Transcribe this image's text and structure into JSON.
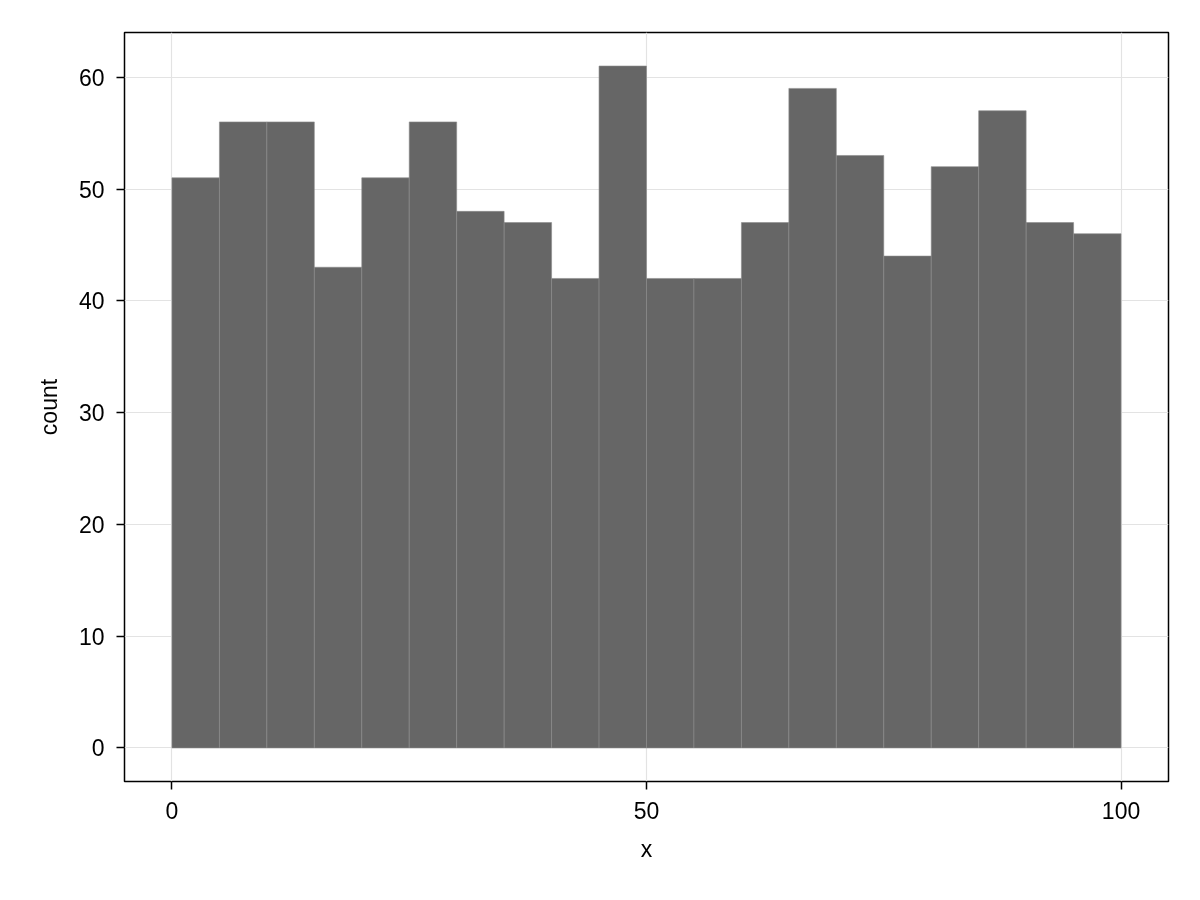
{
  "chart_data": {
    "type": "histogram",
    "xlabel": "x",
    "ylabel": "count",
    "bins": [
      0,
      5,
      10,
      15,
      20,
      25,
      30,
      35,
      40,
      45,
      50,
      55,
      60,
      65,
      70,
      75,
      80,
      85,
      90,
      95,
      100
    ],
    "values": [
      51,
      56,
      56,
      43,
      51,
      56,
      48,
      47,
      42,
      61,
      42,
      42,
      47,
      59,
      53,
      44,
      52,
      57,
      47,
      46
    ],
    "color": "#666666",
    "xlim": [
      -5,
      105
    ],
    "ylim": [
      -3,
      64
    ],
    "xticks": [
      0,
      50,
      100
    ],
    "yticks": [
      0,
      10,
      20,
      30,
      40,
      50,
      60
    ],
    "grid": true
  }
}
